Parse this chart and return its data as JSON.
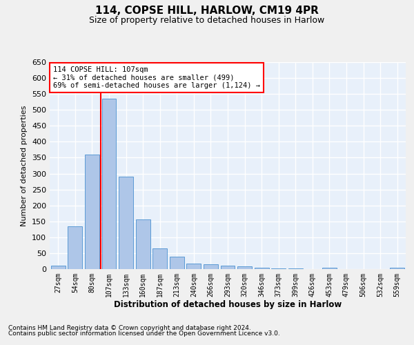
{
  "title": "114, COPSE HILL, HARLOW, CM19 4PR",
  "subtitle": "Size of property relative to detached houses in Harlow",
  "xlabel": "Distribution of detached houses by size in Harlow",
  "ylabel": "Number of detached properties",
  "categories": [
    "27sqm",
    "54sqm",
    "80sqm",
    "107sqm",
    "133sqm",
    "160sqm",
    "187sqm",
    "213sqm",
    "240sqm",
    "266sqm",
    "293sqm",
    "320sqm",
    "346sqm",
    "373sqm",
    "399sqm",
    "426sqm",
    "453sqm",
    "479sqm",
    "506sqm",
    "532sqm",
    "559sqm"
  ],
  "values": [
    10,
    135,
    360,
    535,
    290,
    155,
    65,
    40,
    18,
    15,
    10,
    8,
    5,
    3,
    3,
    1,
    5,
    1,
    1,
    1,
    5
  ],
  "bar_color": "#aec6e8",
  "bar_edge_color": "#5b9bd5",
  "highlight_index": 3,
  "annotation_title": "114 COPSE HILL: 107sqm",
  "annotation_line1": "← 31% of detached houses are smaller (499)",
  "annotation_line2": "69% of semi-detached houses are larger (1,124) →",
  "ylim": [
    0,
    650
  ],
  "yticks": [
    0,
    50,
    100,
    150,
    200,
    250,
    300,
    350,
    400,
    450,
    500,
    550,
    600,
    650
  ],
  "plot_bg_color": "#e8f0fa",
  "fig_bg_color": "#f0f0f0",
  "grid_color": "#ffffff",
  "footnote1": "Contains HM Land Registry data © Crown copyright and database right 2024.",
  "footnote2": "Contains public sector information licensed under the Open Government Licence v3.0."
}
